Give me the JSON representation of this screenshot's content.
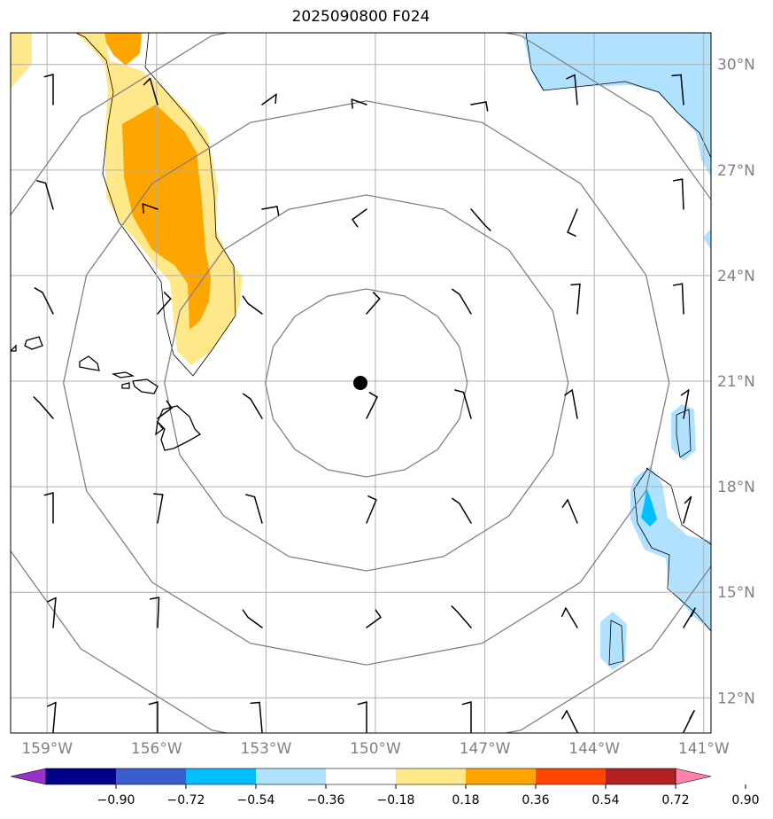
{
  "title": "2025090800 F024",
  "map": {
    "lon_range": [
      -160,
      -140.8
    ],
    "lat_range": [
      11,
      30.9
    ],
    "center": {
      "lon": -150.25,
      "lat": 20.95
    },
    "grid_lats": [
      12,
      15,
      18,
      21,
      24,
      27,
      30
    ],
    "grid_lons": [
      -159,
      -156,
      -153,
      -150,
      -147,
      -144,
      -141
    ],
    "lat_labels": [
      "12°N",
      "15°N",
      "18°N",
      "21°N",
      "24°N",
      "27°N",
      "30°N"
    ],
    "lon_labels": [
      "159°W",
      "156°W",
      "153°W",
      "150°W",
      "147°W",
      "144°W",
      "141°W"
    ],
    "grid_color": "#b0b0b0",
    "ring_color": "#808080"
  },
  "colorbar": {
    "ticks": [
      "−0.90",
      "−0.72",
      "−0.54",
      "−0.36",
      "−0.18",
      "0.18",
      "0.36",
      "0.54",
      "0.72",
      "0.90"
    ],
    "colors": [
      "#9932cc",
      "#00008b",
      "#3a5fcd",
      "#00bfff",
      "#b0e2ff",
      "#ffffff",
      "#ffe88a",
      "#ffa500",
      "#ff4500",
      "#b22222",
      "#ff82ab"
    ]
  },
  "chart_data": {
    "type": "map",
    "title": "2025090800 F024",
    "extent": {
      "lon": [
        -160,
        -140.8
      ],
      "lat": [
        11,
        30.9
      ]
    },
    "center_marker": {
      "lon": -150.25,
      "lat": 20.95
    },
    "colorbar_levels": [
      -0.9,
      -0.72,
      -0.54,
      -0.36,
      -0.18,
      0.18,
      0.36,
      0.54,
      0.72,
      0.9
    ]
  }
}
